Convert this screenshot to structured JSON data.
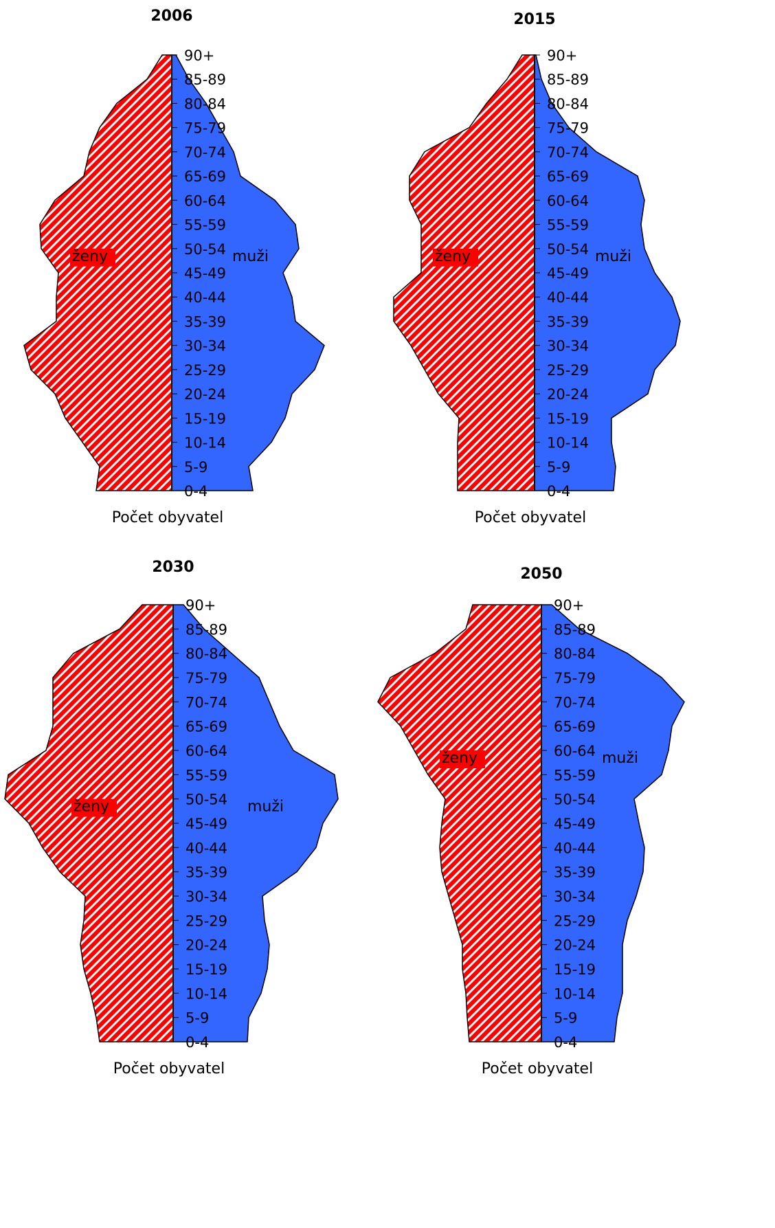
{
  "colors": {
    "female": "#FF0000",
    "female_stripe": "#FFFFFF",
    "male": "#3366FF",
    "outline": "#000000"
  },
  "legend": {
    "female": "ženy",
    "male": "muži"
  },
  "chart_data": [
    {
      "type": "population-pyramid",
      "title": "2006",
      "xlabel": "Počet obyvatel",
      "age_groups": [
        "0-4",
        "5-9",
        "10-14",
        "15-19",
        "20-24",
        "25-29",
        "30-34",
        "35-39",
        "40-44",
        "45-49",
        "50-54",
        "55-59",
        "60-64",
        "65-69",
        "70-74",
        "75-79",
        "80-84",
        "85-89",
        "90+"
      ],
      "series": [
        {
          "name": "ženy",
          "values": [
            110,
            105,
            130,
            155,
            170,
            205,
            215,
            168,
            168,
            165,
            190,
            192,
            170,
            128,
            120,
            105,
            80,
            36,
            14
          ]
        },
        {
          "name": "muži",
          "values": [
            118,
            112,
            145,
            165,
            175,
            208,
            222,
            180,
            175,
            162,
            185,
            180,
            150,
            100,
            90,
            70,
            50,
            25,
            6
          ]
        }
      ]
    },
    {
      "type": "population-pyramid",
      "title": "2015",
      "xlabel": "Počet obyvatel",
      "age_groups": [
        "0-4",
        "5-9",
        "10-14",
        "15-19",
        "20-24",
        "25-29",
        "30-34",
        "35-39",
        "40-44",
        "45-49",
        "50-54",
        "55-59",
        "60-64",
        "65-69",
        "70-74",
        "75-79",
        "80-84",
        "85-89",
        "90+"
      ],
      "series": [
        {
          "name": "ženy",
          "values": [
            112,
            112,
            112,
            110,
            140,
            160,
            180,
            205,
            205,
            165,
            165,
            165,
            182,
            182,
            160,
            95,
            70,
            40,
            18
          ]
        },
        {
          "name": "muži",
          "values": [
            115,
            118,
            112,
            112,
            165,
            175,
            205,
            212,
            200,
            175,
            160,
            155,
            160,
            150,
            90,
            50,
            25,
            10,
            2
          ]
        }
      ]
    },
    {
      "type": "population-pyramid",
      "title": "2030",
      "xlabel": "Počet obyvatel",
      "age_groups": [
        "0-4",
        "5-9",
        "10-14",
        "15-19",
        "20-24",
        "25-29",
        "30-34",
        "35-39",
        "40-44",
        "45-49",
        "50-54",
        "55-59",
        "60-64",
        "65-69",
        "70-74",
        "75-79",
        "80-84",
        "85-89",
        "90+"
      ],
      "series": [
        {
          "name": "ženy",
          "values": [
            107,
            112,
            120,
            130,
            135,
            130,
            128,
            165,
            190,
            210,
            245,
            240,
            185,
            175,
            175,
            175,
            145,
            78,
            45
          ]
        },
        {
          "name": "muži",
          "values": [
            108,
            110,
            128,
            137,
            140,
            133,
            130,
            180,
            208,
            218,
            240,
            235,
            175,
            155,
            140,
            125,
            85,
            45,
            15
          ]
        }
      ]
    },
    {
      "type": "population-pyramid",
      "title": "2050",
      "xlabel": "Počet obyvatel",
      "age_groups": [
        "0-4",
        "5-9",
        "10-14",
        "15-19",
        "20-24",
        "25-29",
        "30-34",
        "35-39",
        "40-44",
        "45-49",
        "50-54",
        "55-59",
        "60-64",
        "65-69",
        "70-74",
        "75-79",
        "80-84",
        "85-89",
        "90+"
      ],
      "series": [
        {
          "name": "ženy",
          "values": [
            105,
            108,
            110,
            115,
            115,
            125,
            135,
            145,
            148,
            145,
            140,
            165,
            185,
            205,
            238,
            220,
            155,
            110,
            100
          ]
        },
        {
          "name": "muži",
          "values": [
            106,
            110,
            118,
            118,
            118,
            125,
            138,
            148,
            150,
            142,
            135,
            175,
            185,
            190,
            208,
            175,
            125,
            55,
            15
          ]
        }
      ]
    }
  ]
}
